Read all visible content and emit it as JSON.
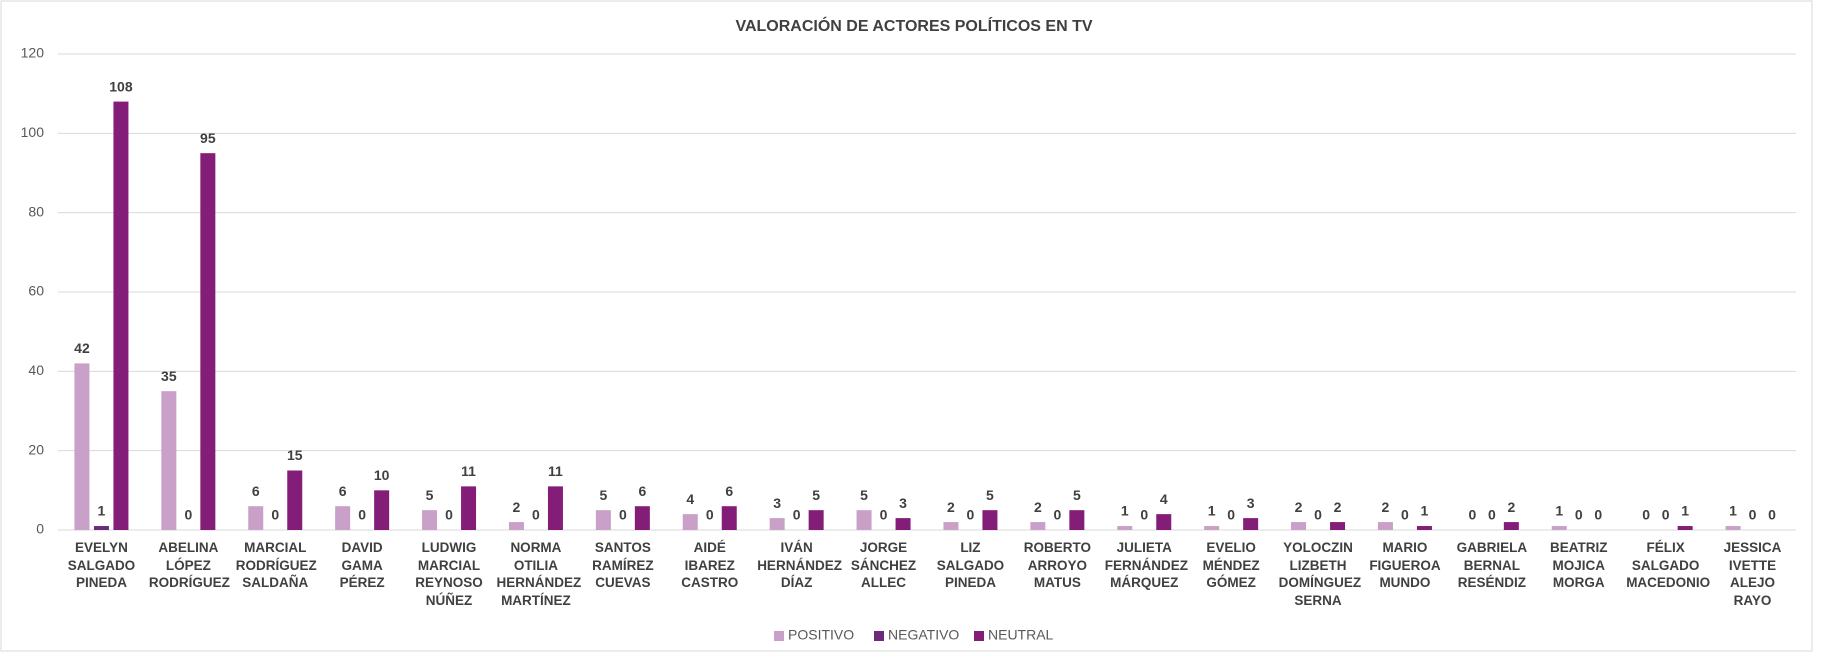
{
  "chart_data": {
    "type": "bar",
    "title": "VALORACIÓN DE ACTORES POLÍTICOS EN TV",
    "categories": [
      "EVELYN SALGADO PINEDA",
      "ABELINA LÓPEZ RODRÍGUEZ",
      "MARCIAL RODRÍGUEZ SALDAÑA",
      "DAVID GAMA PÉREZ",
      "LUDWIG MARCIAL REYNOSO NÚÑEZ",
      "NORMA OTILIA HERNÁNDEZ MARTÍNEZ",
      "SANTOS RAMÍREZ CUEVAS",
      "AIDÉ IBAREZ CASTRO",
      "IVÁN HERNÁNDEZ DÍAZ",
      "JORGE SÁNCHEZ ALLEC",
      "LIZ SALGADO PINEDA",
      "ROBERTO ARROYO MATUS",
      "JULIETA FERNÁNDEZ MÁRQUEZ",
      "EVELIO MÉNDEZ GÓMEZ",
      "YOLOCZIN LIZBETH DOMÍNGUEZ SERNA",
      "MARIO FIGUEROA MUNDO",
      "GABRIELA BERNAL RESÉNDIZ",
      "BEATRIZ MOJICA MORGA",
      "FÉLIX SALGADO MACEDONIO",
      "JESSICA IVETTE ALEJO RAYO"
    ],
    "series": [
      {
        "name": "POSITIVO",
        "color": "#c9a0c8",
        "values": [
          42,
          35,
          6,
          6,
          5,
          2,
          5,
          4,
          3,
          5,
          2,
          2,
          1,
          1,
          2,
          2,
          0,
          1,
          0,
          1
        ]
      },
      {
        "name": "NEGATIVO",
        "color": "#6e2a7a",
        "values": [
          1,
          0,
          0,
          0,
          0,
          0,
          0,
          0,
          0,
          0,
          0,
          0,
          0,
          0,
          0,
          0,
          0,
          0,
          0,
          0
        ]
      },
      {
        "name": "NEUTRAL",
        "color": "#831d78",
        "values": [
          108,
          95,
          15,
          10,
          11,
          11,
          6,
          6,
          5,
          3,
          5,
          5,
          4,
          3,
          2,
          1,
          2,
          0,
          1,
          0
        ]
      }
    ],
    "ylim": [
      0,
      120
    ],
    "yticks": [
      0,
      20,
      40,
      60,
      80,
      100,
      120
    ],
    "grid": true,
    "legend": "bottom"
  }
}
